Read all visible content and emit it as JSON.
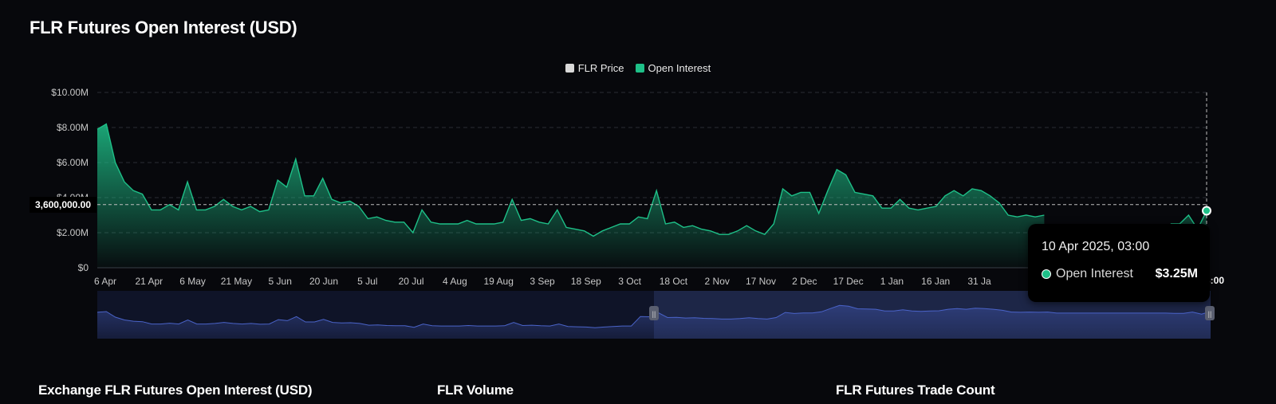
{
  "title": "FLR Futures Open Interest (USD)",
  "legend": {
    "price_label": "FLR Price",
    "oi_label": "Open Interest"
  },
  "colors": {
    "price": "#d9d9d9",
    "open_interest": "#1ec088",
    "navigator": "#3b4fa0"
  },
  "crosshair": {
    "y_label": "3,600,000.00",
    "y_value": 3600000,
    "x_label": ", 03:00"
  },
  "tooltip": {
    "date": "10 Apr 2025, 03:00",
    "series": "Open Interest",
    "value": "$3.25M"
  },
  "sections": [
    "Exchange FLR Futures Open Interest (USD)",
    "FLR Volume",
    "FLR Futures Trade Count"
  ],
  "chart_data": {
    "type": "area",
    "ylim": [
      0,
      10000000
    ],
    "y_ticks": [
      {
        "value": 0,
        "label": "$0"
      },
      {
        "value": 2000000,
        "label": "$2.00M"
      },
      {
        "value": 4000000,
        "label": "$4.00M"
      },
      {
        "value": 6000000,
        "label": "$6.00M"
      },
      {
        "value": 8000000,
        "label": "$8.00M"
      },
      {
        "value": 10000000,
        "label": "$10.00M"
      }
    ],
    "x_ticks": [
      "6 Apr",
      "21 Apr",
      "6 May",
      "21 May",
      "5 Jun",
      "20 Jun",
      "5 Jul",
      "20 Jul",
      "4 Aug",
      "19 Aug",
      "3 Sep",
      "18 Sep",
      "3 Oct",
      "18 Oct",
      "2 Nov",
      "17 Nov",
      "2 Dec",
      "17 Dec",
      "1 Jan",
      "16 Jan",
      "31 Ja"
    ],
    "grid": true,
    "legend_position": "top-center",
    "series": [
      {
        "name": "Open Interest",
        "x": [
          "6 Apr",
          "9 Apr",
          "12 Apr",
          "15 Apr",
          "18 Apr",
          "21 Apr",
          "24 Apr",
          "27 Apr",
          "30 Apr",
          "3 May",
          "6 May",
          "9 May",
          "12 May",
          "15 May",
          "18 May",
          "21 May",
          "24 May",
          "27 May",
          "30 May",
          "2 Jun",
          "5 Jun",
          "8 Jun",
          "11 Jun",
          "14 Jun",
          "17 Jun",
          "20 Jun",
          "23 Jun",
          "26 Jun",
          "29 Jun",
          "2 Jul",
          "5 Jul",
          "8 Jul",
          "11 Jul",
          "14 Jul",
          "17 Jul",
          "20 Jul",
          "23 Jul",
          "26 Jul",
          "29 Jul",
          "1 Aug",
          "4 Aug",
          "7 Aug",
          "10 Aug",
          "13 Aug",
          "16 Aug",
          "19 Aug",
          "22 Aug",
          "25 Aug",
          "28 Aug",
          "31 Aug",
          "3 Sep",
          "6 Sep",
          "9 Sep",
          "12 Sep",
          "15 Sep",
          "18 Sep",
          "21 Sep",
          "24 Sep",
          "27 Sep",
          "30 Sep",
          "3 Oct",
          "6 Oct",
          "9 Oct",
          "12 Oct",
          "15 Oct",
          "18 Oct",
          "21 Oct",
          "24 Oct",
          "27 Oct",
          "30 Oct",
          "2 Nov",
          "5 Nov",
          "8 Nov",
          "11 Nov",
          "14 Nov",
          "17 Nov",
          "20 Nov",
          "23 Nov",
          "26 Nov",
          "29 Nov",
          "2 Dec",
          "5 Dec",
          "8 Dec",
          "11 Dec",
          "14 Dec",
          "17 Dec",
          "20 Dec",
          "23 Dec",
          "26 Dec",
          "29 Dec",
          "1 Jan",
          "4 Jan",
          "7 Jan",
          "10 Jan",
          "13 Jan",
          "16 Jan",
          "19 Jan",
          "22 Jan",
          "25 Jan",
          "28 Jan",
          "31 Jan",
          "3 Feb",
          "6 Feb",
          "9 Feb",
          "12 Feb",
          "15 Feb",
          "18 Feb",
          "21 Feb",
          "24 Feb",
          "27 Feb",
          "2 Mar",
          "5 Mar",
          "8 Mar",
          "11 Mar",
          "14 Mar",
          "17 Mar",
          "20 Mar",
          "23 Mar",
          "26 Mar",
          "29 Mar",
          "1 Apr",
          "4 Apr",
          "7 Apr",
          "10 Apr"
        ],
        "values": [
          7.9,
          8.2,
          6.0,
          4.9,
          4.4,
          4.2,
          3.3,
          3.3,
          3.6,
          3.3,
          4.9,
          3.3,
          3.3,
          3.5,
          3.9,
          3.5,
          3.3,
          3.5,
          3.2,
          3.3,
          5.0,
          4.6,
          6.2,
          4.1,
          4.1,
          5.1,
          3.9,
          3.7,
          3.8,
          3.5,
          2.8,
          2.9,
          2.7,
          2.6,
          2.6,
          2.0,
          3.3,
          2.6,
          2.5,
          2.5,
          2.5,
          2.7,
          2.5,
          2.5,
          2.5,
          2.6,
          3.9,
          2.7,
          2.8,
          2.6,
          2.5,
          3.3,
          2.3,
          2.2,
          2.1,
          1.8,
          2.1,
          2.3,
          2.5,
          2.5,
          2.9,
          2.8,
          4.4,
          2.5,
          2.6,
          2.3,
          2.4,
          2.2,
          2.1,
          1.9,
          1.9,
          2.1,
          2.4,
          2.1,
          1.9,
          2.5,
          4.5,
          4.1,
          4.3,
          4.3,
          3.1,
          4.4,
          5.6,
          5.3,
          4.3,
          4.2,
          4.1,
          3.4,
          3.4,
          3.9,
          3.4,
          3.3,
          3.4,
          3.5,
          4.1,
          4.4,
          4.1,
          4.5,
          4.4,
          4.1,
          3.7,
          3.0,
          2.9,
          3.0,
          2.9,
          3.0,
          null,
          null,
          null,
          null,
          null,
          null,
          null,
          null,
          null,
          null,
          null,
          null,
          null,
          2.5,
          2.5,
          3.0,
          2.2,
          3.25
        ],
        "unit": "millions USD"
      }
    ]
  }
}
